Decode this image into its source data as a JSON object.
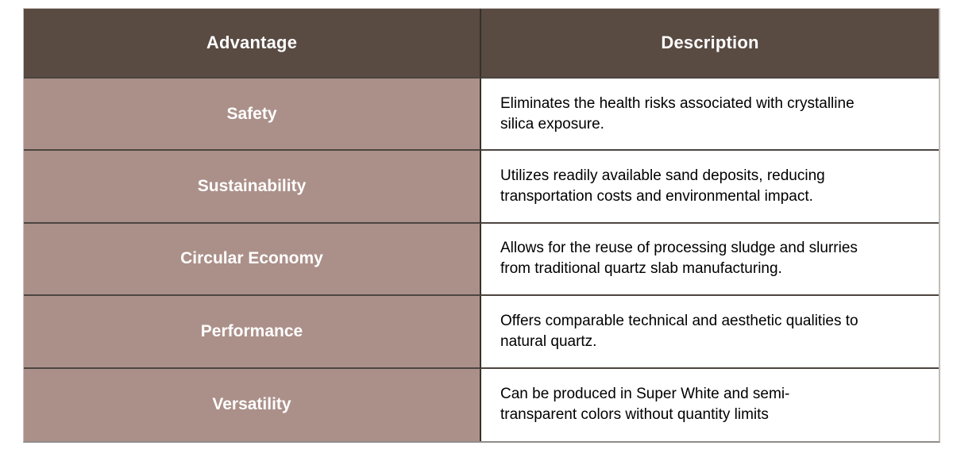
{
  "table": {
    "columns": [
      {
        "label": "Advantage"
      },
      {
        "label": "Description"
      }
    ],
    "rows": [
      {
        "advantage": "Safety",
        "description": "Eliminates the health risks associated with crystalline\nsilica exposure."
      },
      {
        "advantage": "Sustainability",
        "description": "Utilizes readily available sand deposits, reducing\ntransportation costs and environmental impact."
      },
      {
        "advantage": "Circular Economy",
        "description": "Allows for the reuse of processing sludge and slurries\nfrom traditional quartz slab manufacturing."
      },
      {
        "advantage": "Performance",
        "description": "Offers comparable technical and aesthetic qualities to\nnatural quartz."
      },
      {
        "advantage": "Versatility",
        "description": "Can be produced in Super White and semi-\ntransparent colors without quantity limits"
      }
    ]
  },
  "colors": {
    "header_bg": "#594a42",
    "header_text": "#ffffff",
    "advantage_bg": "#ab9089",
    "advantage_text": "#ffffff",
    "description_bg": "#ffffff",
    "description_text": "#000000",
    "row_border": "#4d4540",
    "divider": "#36302b"
  }
}
